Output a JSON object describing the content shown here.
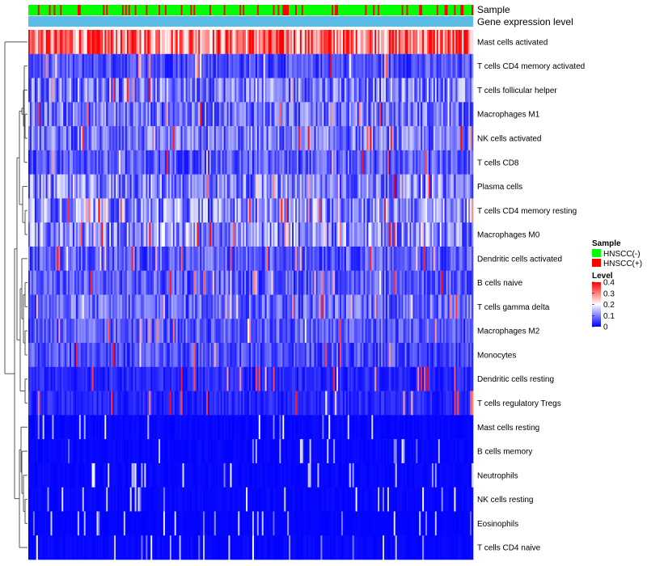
{
  "chart_data": {
    "type": "heatmap",
    "rows": [
      "Mast cells activated",
      "T cells CD4 memory activated",
      "T cells follicular helper",
      "Macrophages M1",
      "NK cells activated",
      "T cells CD8",
      "Plasma cells",
      "T cells CD4 memory resting",
      "Macrophages M0",
      "Dendritic cells activated",
      "B cells naive",
      "T cells gamma delta",
      "Macrophages M2",
      "Monocytes",
      "Dendritic cells resting",
      "T cells regulatory  Tregs",
      "Mast cells resting",
      "B cells memory",
      "Neutrophils",
      "NK cells resting",
      "Eosinophils",
      "T cells CD4 naive"
    ],
    "row_mean_level": [
      0.3,
      0.06,
      0.1,
      0.09,
      0.09,
      0.07,
      0.1,
      0.11,
      0.11,
      0.07,
      0.07,
      0.08,
      0.07,
      0.06,
      0.03,
      0.03,
      0.01,
      0.01,
      0.01,
      0.01,
      0.005,
      0.01
    ],
    "n_samples": 280,
    "color_scale": {
      "min": 0,
      "max": 0.4,
      "colors": [
        "#0000ff",
        "#ffffff",
        "#ff0000"
      ]
    },
    "column_annotations": [
      {
        "name": "Sample",
        "type": "categorical"
      },
      {
        "name": "Gene expression level",
        "type": "constant",
        "color": "#5bbde6"
      }
    ]
  },
  "legend": {
    "sample": {
      "title": "Sample",
      "items": [
        {
          "label": "HNSCC(-)",
          "color": "#00ff00"
        },
        {
          "label": "HNSCC(+)",
          "color": "#ff0000"
        }
      ]
    },
    "level": {
      "title": "Level",
      "ticks": [
        {
          "label": "0.4",
          "value": 0.4
        },
        {
          "label": "0.3",
          "value": 0.3
        },
        {
          "label": "0.2",
          "value": 0.2
        },
        {
          "label": "0.1",
          "value": 0.1
        },
        {
          "label": "0",
          "value": 0
        }
      ]
    }
  },
  "colors": {
    "negative": "#00ff00",
    "positive": "#ff0000",
    "annotation_bar": "#5bbde6",
    "dendrogram": "#555555"
  }
}
